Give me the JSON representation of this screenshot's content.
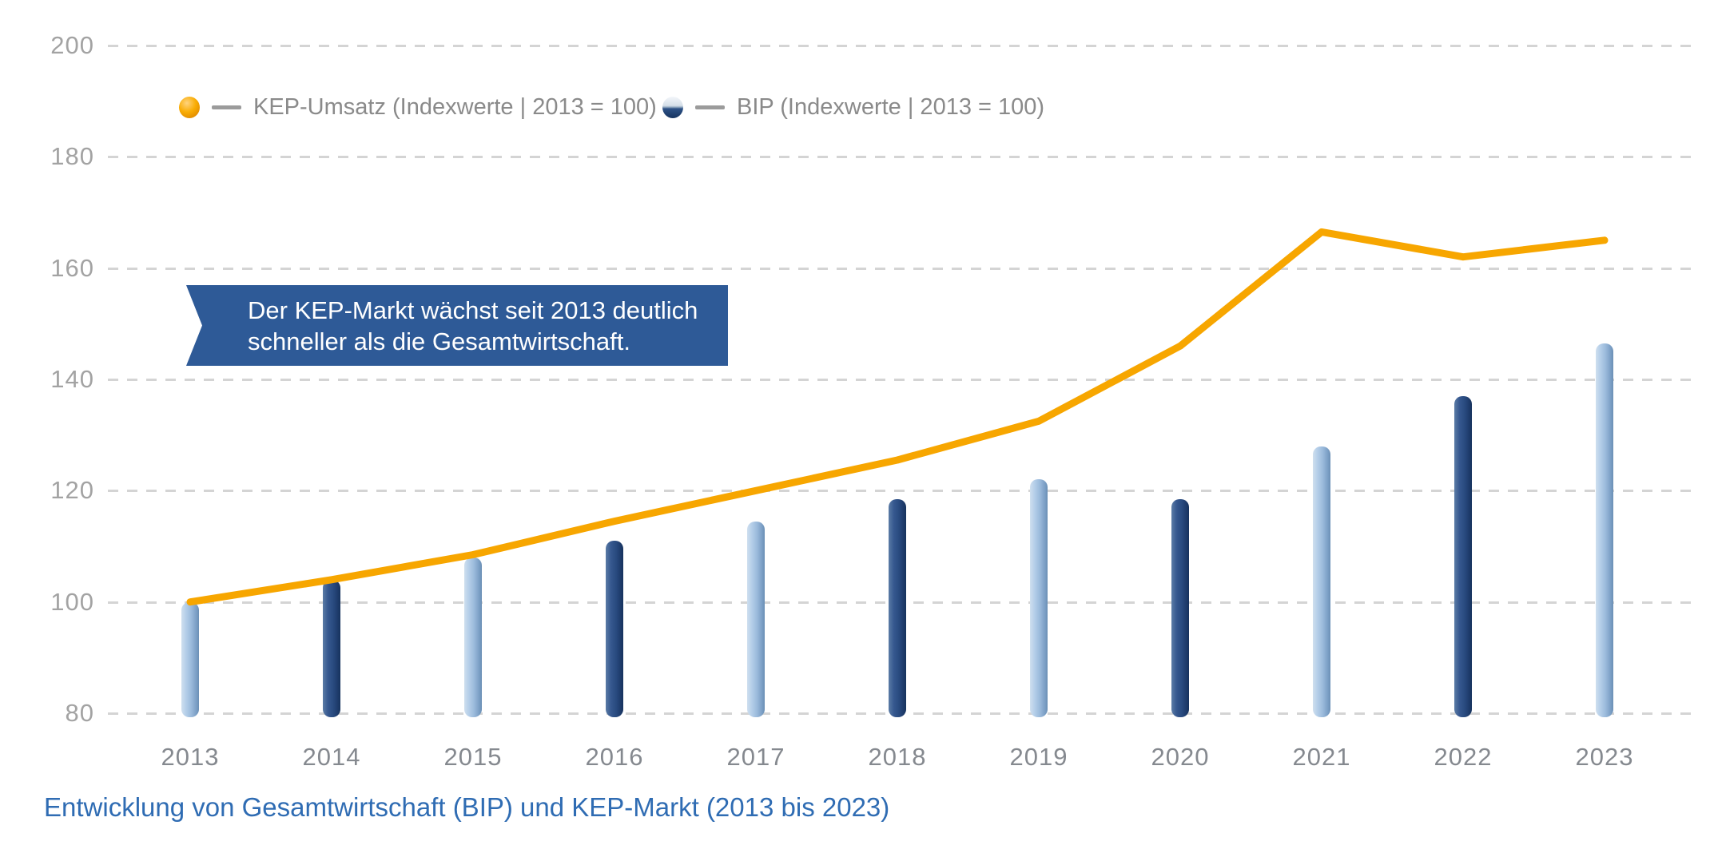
{
  "legend": {
    "items": [
      {
        "label": "KEP-Umsatz (Indexwerte | 2013 = 100)",
        "marker": "orange-sphere"
      },
      {
        "label": "BIP (Indexwerte | 2013 = 100)",
        "marker": "blue-half-sphere"
      }
    ]
  },
  "callout": {
    "line1": "Der KEP-Markt wächst seit 2013 deutlich",
    "line2": "schneller als die Gesamtwirtschaft."
  },
  "caption": "Entwicklung von Gesamtwirtschaft (BIP) und KEP-Markt (2013 bis 2023)",
  "chart_data": {
    "type": "bar",
    "subtype": "combo-line-and-bar",
    "categories": [
      "2013",
      "2014",
      "2015",
      "2016",
      "2017",
      "2018",
      "2019",
      "2020",
      "2021",
      "2022",
      "2023"
    ],
    "series": [
      {
        "name": "KEP-Umsatz (Indexwerte | 2013 = 100)",
        "type": "line",
        "values": [
          100,
          104,
          108.5,
          114.5,
          120,
          125.5,
          132.5,
          146,
          166.5,
          162,
          165
        ]
      },
      {
        "name": "BIP (Indexwerte | 2013 = 100)",
        "type": "bar",
        "values": [
          100,
          104,
          108,
          111,
          114.5,
          118.5,
          122,
          118.5,
          128,
          137,
          146.5
        ]
      }
    ],
    "title": "",
    "xlabel": "",
    "ylabel": "",
    "yticks": [
      200,
      180,
      160,
      140,
      120,
      100,
      80
    ],
    "ylim": [
      80,
      200
    ],
    "grid": "horizontal-dashed",
    "legend_position": "top-left"
  },
  "colors": {
    "line_orange": "#F7A600",
    "bar_light_blue": "#A5C3E3",
    "bar_dark_blue": "#2B4F87",
    "callout_background": "#2E5A97",
    "callout_text": "#FFFFFF",
    "caption_text": "#2F6CB3",
    "y_axis_text": "#A3A3A3",
    "x_axis_text": "#85898F",
    "legend_text": "#8A8A8A",
    "gridline": "#D4D4D4"
  }
}
